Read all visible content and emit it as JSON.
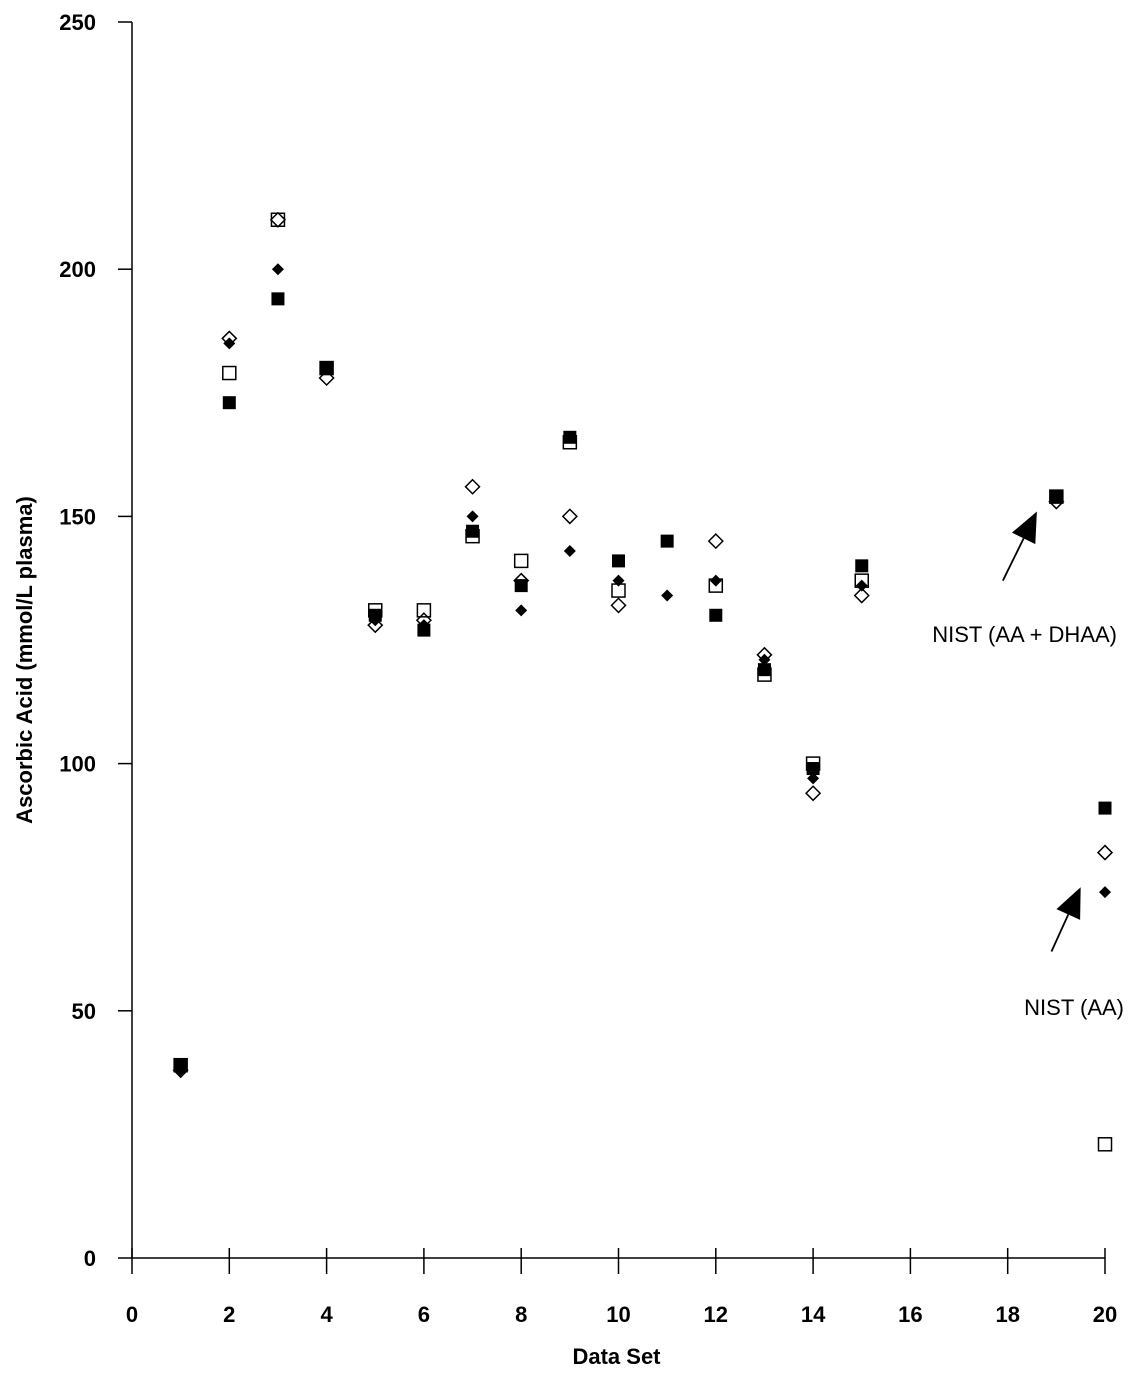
{
  "chart_data": {
    "type": "scatter",
    "xlabel": "Data Set",
    "ylabel": "Ascorbic Acid (mmol/L plasma)",
    "xlim": [
      0,
      20
    ],
    "ylim": [
      0,
      250
    ],
    "x_ticks": [
      "0",
      "2",
      "4",
      "6",
      "8",
      "10",
      "12",
      "14",
      "16",
      "18",
      "20"
    ],
    "y_ticks": [
      "0",
      "50",
      "100",
      "150",
      "200",
      "250"
    ],
    "grid": false,
    "series": [
      {
        "marker": "filled-square",
        "points": [
          [
            1,
            39
          ],
          [
            2,
            173
          ],
          [
            3,
            194
          ],
          [
            4,
            180
          ],
          [
            5,
            130
          ],
          [
            6,
            127
          ],
          [
            7,
            147
          ],
          [
            8,
            136
          ],
          [
            9,
            166
          ],
          [
            10,
            141
          ],
          [
            11,
            145
          ],
          [
            12,
            130
          ],
          [
            13,
            119
          ],
          [
            14,
            99
          ],
          [
            15,
            140
          ],
          [
            19,
            154
          ],
          [
            20,
            91
          ]
        ]
      },
      {
        "marker": "open-square",
        "points": [
          [
            1,
            39
          ],
          [
            2,
            179
          ],
          [
            3,
            210
          ],
          [
            4,
            180
          ],
          [
            5,
            131
          ],
          [
            6,
            131
          ],
          [
            7,
            146
          ],
          [
            8,
            141
          ],
          [
            9,
            165
          ],
          [
            10,
            135
          ],
          [
            12,
            136
          ],
          [
            13,
            118
          ],
          [
            14,
            100
          ],
          [
            15,
            137
          ],
          [
            19,
            154
          ],
          [
            20,
            23
          ]
        ]
      },
      {
        "marker": "filled-diamond",
        "points": [
          [
            1,
            38
          ],
          [
            2,
            185
          ],
          [
            3,
            200
          ],
          [
            4,
            180
          ],
          [
            5,
            129
          ],
          [
            6,
            128
          ],
          [
            7,
            150
          ],
          [
            8,
            131
          ],
          [
            9,
            143
          ],
          [
            10,
            137
          ],
          [
            11,
            134
          ],
          [
            12,
            137
          ],
          [
            13,
            121
          ],
          [
            14,
            97
          ],
          [
            15,
            136
          ],
          [
            19,
            154
          ],
          [
            20,
            74
          ]
        ]
      },
      {
        "marker": "open-diamond",
        "points": [
          [
            1,
            38
          ],
          [
            2,
            186
          ],
          [
            3,
            210
          ],
          [
            4,
            178
          ],
          [
            5,
            128
          ],
          [
            6,
            129
          ],
          [
            7,
            156
          ],
          [
            8,
            137
          ],
          [
            9,
            150
          ],
          [
            10,
            132
          ],
          [
            12,
            145
          ],
          [
            13,
            122
          ],
          [
            14,
            94
          ],
          [
            15,
            134
          ],
          [
            19,
            153
          ],
          [
            20,
            82
          ]
        ]
      }
    ],
    "annotations": [
      {
        "text": "NIST (AA + DHAA)",
        "arrow_to": [
          18.6,
          151
        ],
        "arrow_from": [
          17.9,
          137
        ]
      },
      {
        "text": "NIST (AA)",
        "arrow_to": [
          19.5,
          75
        ],
        "arrow_from": [
          18.9,
          62
        ]
      }
    ]
  }
}
